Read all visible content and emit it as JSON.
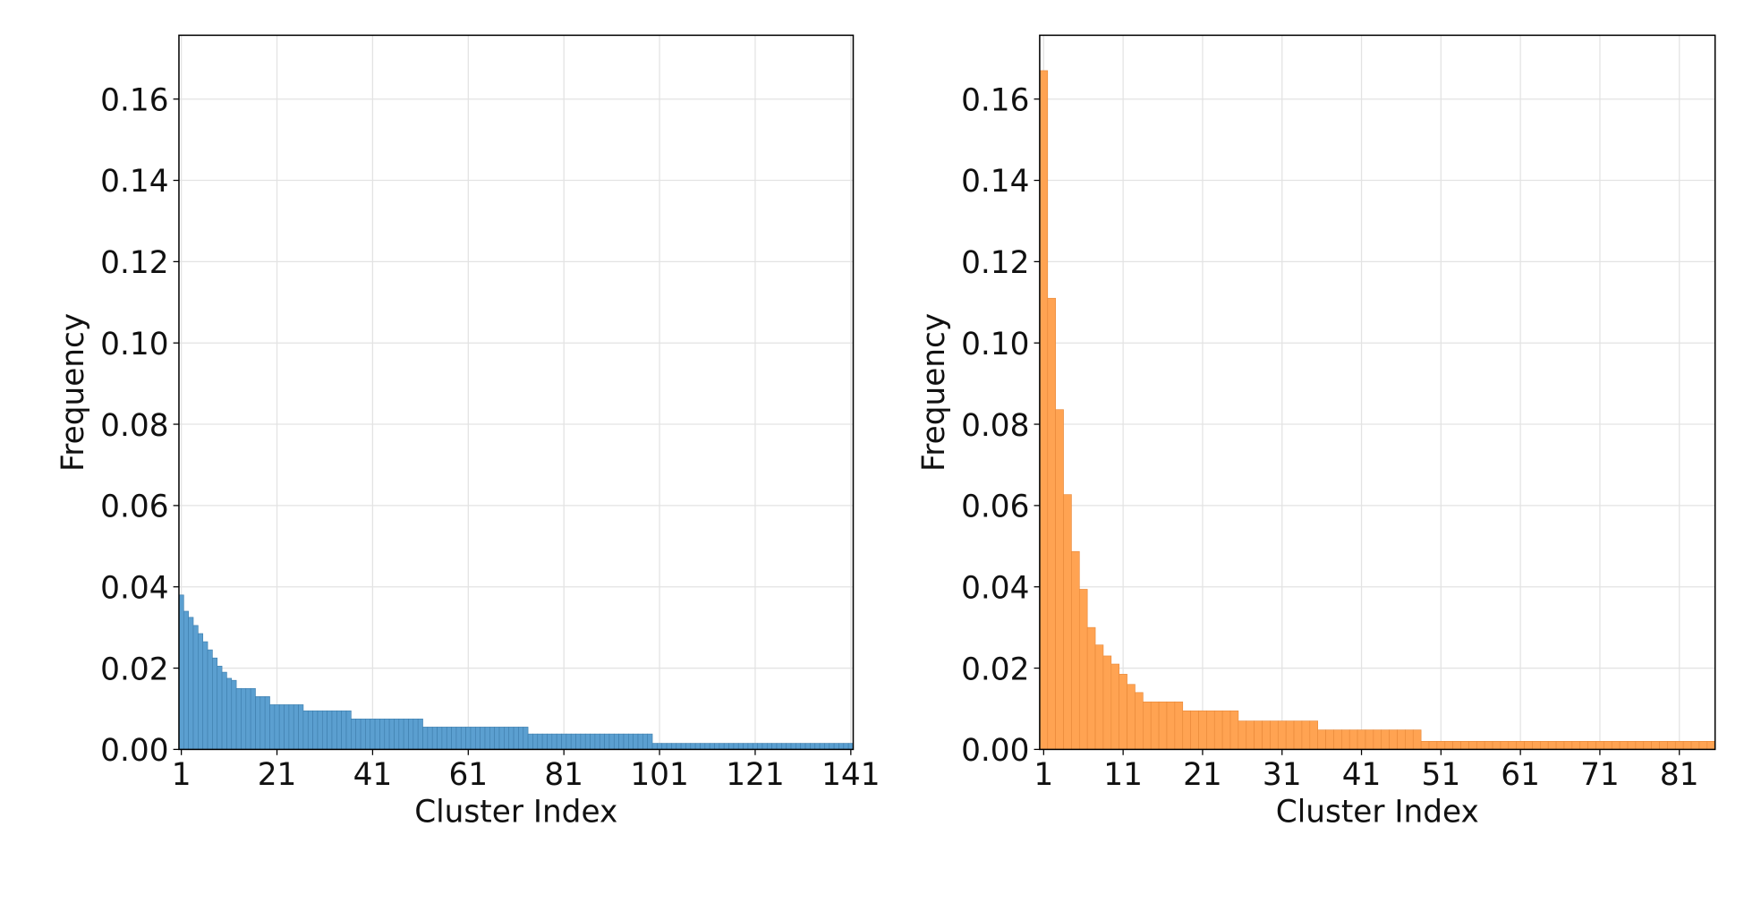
{
  "chart_data": [
    {
      "type": "bar",
      "xlabel": "Cluster Index",
      "ylabel": "Frequency",
      "color": "#5b9fd0",
      "edgecolor": "#3f7fae",
      "grid": true,
      "xlim": [
        0.5,
        141.5
      ],
      "ylim": [
        0,
        0.1757
      ],
      "xticks": [
        1,
        21,
        41,
        61,
        81,
        101,
        121,
        141
      ],
      "yticks": [
        {
          "value": 0,
          "label": "0.00"
        },
        0.02,
        0.04,
        0.06,
        0.08,
        {
          "value": 0.1,
          "label": "0.10"
        },
        0.12,
        0.14,
        0.16
      ],
      "x": [
        1,
        2,
        3,
        4,
        5,
        6,
        7,
        8,
        9,
        10,
        11,
        12,
        13,
        14,
        15,
        16,
        17,
        18,
        19,
        20,
        21,
        22,
        23,
        24,
        25,
        26,
        27,
        28,
        29,
        30,
        31,
        32,
        33,
        34,
        35,
        36,
        37,
        38,
        39,
        40,
        41,
        42,
        43,
        44,
        45,
        46,
        47,
        48,
        49,
        50,
        51,
        52,
        53,
        54,
        55,
        56,
        57,
        58,
        59,
        60,
        61,
        62,
        63,
        64,
        65,
        66,
        67,
        68,
        69,
        70,
        71,
        72,
        73,
        74,
        75,
        76,
        77,
        78,
        79,
        80,
        81,
        82,
        83,
        84,
        85,
        86,
        87,
        88,
        89,
        90,
        91,
        92,
        93,
        94,
        95,
        96,
        97,
        98,
        99,
        100,
        101,
        102,
        103,
        104,
        105,
        106,
        107,
        108,
        109,
        110,
        111,
        112,
        113,
        114,
        115,
        116,
        117,
        118,
        119,
        120,
        121,
        122,
        123,
        124,
        125,
        126,
        127,
        128,
        129,
        130,
        131,
        132,
        133,
        134,
        135,
        136,
        137,
        138,
        139,
        140,
        141
      ],
      "values": [
        0.038,
        0.034,
        0.0325,
        0.0305,
        0.0285,
        0.0265,
        0.0245,
        0.0225,
        0.0205,
        0.019,
        0.0175,
        0.017,
        0.015,
        0.015,
        0.015,
        0.015,
        0.013,
        0.013,
        0.013,
        0.011,
        0.011,
        0.011,
        0.011,
        0.011,
        0.011,
        0.011,
        0.0095,
        0.0095,
        0.0095,
        0.0095,
        0.0095,
        0.0095,
        0.0095,
        0.0095,
        0.0095,
        0.0095,
        0.0075,
        0.0075,
        0.0075,
        0.0075,
        0.0075,
        0.0075,
        0.0075,
        0.0075,
        0.0075,
        0.0075,
        0.0075,
        0.0075,
        0.0075,
        0.0075,
        0.0075,
        0.0055,
        0.0055,
        0.0055,
        0.0055,
        0.0055,
        0.0055,
        0.0055,
        0.0055,
        0.0055,
        0.0055,
        0.0055,
        0.0055,
        0.0055,
        0.0055,
        0.0055,
        0.0055,
        0.0055,
        0.0055,
        0.0055,
        0.0055,
        0.0055,
        0.0055,
        0.0038,
        0.0038,
        0.0038,
        0.0038,
        0.0038,
        0.0038,
        0.0038,
        0.0038,
        0.0038,
        0.0038,
        0.0038,
        0.0038,
        0.0038,
        0.0038,
        0.0038,
        0.0038,
        0.0038,
        0.0038,
        0.0038,
        0.0038,
        0.0038,
        0.0038,
        0.0038,
        0.0038,
        0.0038,
        0.0038,
        0.0015,
        0.0015,
        0.0015,
        0.0015,
        0.0015,
        0.0015,
        0.0015,
        0.0015,
        0.0015,
        0.0015,
        0.0015,
        0.0015,
        0.0015,
        0.0015,
        0.0015,
        0.0015,
        0.0015,
        0.0015,
        0.0015,
        0.0015,
        0.0015,
        0.0015,
        0.0015,
        0.0015,
        0.0015,
        0.0015,
        0.0015,
        0.0015,
        0.0015,
        0.0015,
        0.0015,
        0.0015,
        0.0015,
        0.0015,
        0.0015,
        0.0015,
        0.0015,
        0.0015,
        0.0015,
        0.0015,
        0.0015,
        0.0015
      ]
    },
    {
      "type": "bar",
      "xlabel": "Cluster Index",
      "ylabel": "Frequency",
      "color": "#ffa352",
      "edgecolor": "#e8893a",
      "grid": true,
      "xlim": [
        0.5,
        85.5
      ],
      "ylim": [
        0,
        0.1757
      ],
      "xticks": [
        1,
        11,
        21,
        31,
        41,
        51,
        61,
        71,
        81
      ],
      "yticks": [
        {
          "value": 0,
          "label": "0.00"
        },
        0.02,
        0.04,
        0.06,
        0.08,
        {
          "value": 0.1,
          "label": "0.10"
        },
        0.12,
        0.14,
        0.16
      ],
      "x": [
        1,
        2,
        3,
        4,
        5,
        6,
        7,
        8,
        9,
        10,
        11,
        12,
        13,
        14,
        15,
        16,
        17,
        18,
        19,
        20,
        21,
        22,
        23,
        24,
        25,
        26,
        27,
        28,
        29,
        30,
        31,
        32,
        33,
        34,
        35,
        36,
        37,
        38,
        39,
        40,
        41,
        42,
        43,
        44,
        45,
        46,
        47,
        48,
        49,
        50,
        51,
        52,
        53,
        54,
        55,
        56,
        57,
        58,
        59,
        60,
        61,
        62,
        63,
        64,
        65,
        66,
        67,
        68,
        69,
        70,
        71,
        72,
        73,
        74,
        75,
        76,
        77,
        78,
        79,
        80,
        81,
        82,
        83,
        84,
        85
      ],
      "values": [
        0.167,
        0.111,
        0.0836,
        0.0627,
        0.0487,
        0.0394,
        0.03,
        0.0257,
        0.023,
        0.021,
        0.0185,
        0.016,
        0.014,
        0.0117,
        0.0117,
        0.0117,
        0.0117,
        0.0117,
        0.0095,
        0.0095,
        0.0095,
        0.0095,
        0.0095,
        0.0095,
        0.0095,
        0.007,
        0.007,
        0.007,
        0.007,
        0.007,
        0.007,
        0.007,
        0.007,
        0.007,
        0.007,
        0.0048,
        0.0048,
        0.0048,
        0.0048,
        0.0048,
        0.0048,
        0.0048,
        0.0048,
        0.0048,
        0.0048,
        0.0048,
        0.0048,
        0.0048,
        0.002,
        0.002,
        0.002,
        0.002,
        0.002,
        0.002,
        0.002,
        0.002,
        0.002,
        0.002,
        0.002,
        0.002,
        0.002,
        0.002,
        0.002,
        0.002,
        0.002,
        0.002,
        0.002,
        0.002,
        0.002,
        0.002,
        0.002,
        0.002,
        0.002,
        0.002,
        0.002,
        0.002,
        0.002,
        0.002,
        0.002,
        0.002,
        0.002,
        0.002,
        0.002,
        0.002,
        0.002
      ]
    }
  ]
}
